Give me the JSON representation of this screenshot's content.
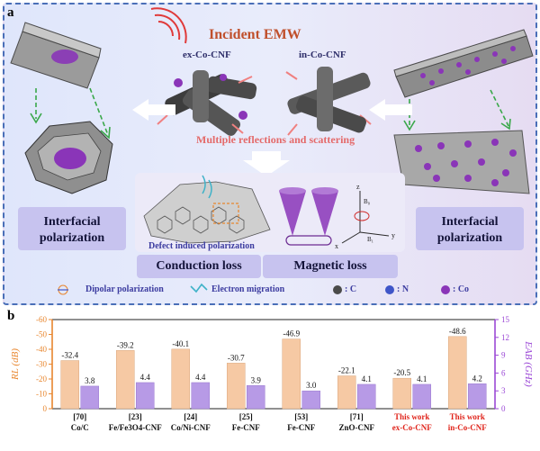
{
  "panel_a": {
    "letter": "a",
    "incident": "Incident EMW",
    "ex_label": "ex-Co-CNF",
    "in_label": "in-Co-CNF",
    "multiple": "Multiple reflections and scattering",
    "defect": "Defect induced polarization",
    "interfacial_left": "Interfacial polarization",
    "interfacial_right": "Interfacial polarization",
    "conduction": "Conduction loss",
    "magnetic": "Magnetic loss",
    "legend": {
      "dipolar": "Dipolar polarization",
      "electron": "Electron migration",
      "c": ": C",
      "n": ": N",
      "co": ": Co"
    },
    "axes": {
      "z": "z",
      "y": "y",
      "x": "x",
      "b0": "B₀",
      "b1": "B₁"
    },
    "colors": {
      "c_atom": "#6b6b6b",
      "n_atom": "#3f55c8",
      "co_atom": "#8a35b8",
      "incident_text": "#c0502b",
      "multiple_text": "#e46a6a"
    }
  },
  "chart_data": {
    "type": "bar",
    "letter": "b",
    "refs": [
      "[70]",
      "[23]",
      "[24]",
      "[25]",
      "[53]",
      "[71]",
      "This work",
      "This work"
    ],
    "categories": [
      "Co/C",
      "Fe/Fe3O4-CNF",
      "Co/Ni-CNF",
      "Fe-CNF",
      "Fe-CNF",
      "ZnO-CNF",
      "ex-Co-CNF",
      "in-Co-CNF"
    ],
    "highlight": [
      false,
      false,
      false,
      false,
      false,
      false,
      true,
      true
    ],
    "series": [
      {
        "name": "RL",
        "axis": "left",
        "values": [
          -32.4,
          -39.2,
          -40.1,
          -30.7,
          -46.9,
          -22.1,
          -20.5,
          -48.6
        ],
        "labels": [
          "-32.4",
          "-39.2",
          "-40.1",
          "-30.7",
          "-46.9",
          "-22.1",
          "-20.5",
          "-48.6"
        ],
        "color": "#f6c9a4"
      },
      {
        "name": "EAB",
        "axis": "right",
        "values": [
          3.8,
          4.4,
          4.4,
          3.9,
          3.0,
          4.1,
          4.1,
          4.2
        ],
        "labels": [
          "3.8",
          "4.4",
          "4.4",
          "3.9",
          "3.0",
          "4.1",
          "4.1",
          "4.2"
        ],
        "color": "#b79ae6"
      }
    ],
    "ylabel_left": "RL (dB)",
    "ylabel_right": "EAB (GHz)",
    "yticks_left": [
      "-60",
      "-50",
      "-40",
      "-30",
      "-20",
      "-10",
      "0"
    ],
    "yticks_right": [
      "15",
      "12",
      "9",
      "6",
      "3",
      "0"
    ],
    "ylim_left": [
      0,
      -60
    ],
    "ylim_right": [
      0,
      15
    ],
    "left_axis_color": "#e8862e",
    "right_axis_color": "#9b48d6",
    "highlight_color": "#e0241b"
  }
}
